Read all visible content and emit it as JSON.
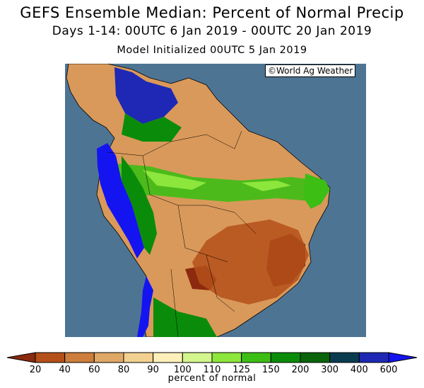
{
  "header": {
    "title": "GEFS Ensemble Median: Percent of Normal Precip",
    "period": "Days 1-14: 00UTC 6 Jan 2019 - 00UTC 20 Jan 2019",
    "init": "Model Initialized 00UTC 5 Jan 2019"
  },
  "map": {
    "credit": "©World Ag Weather",
    "ocean_color": "#4e7494"
  },
  "colorbar": {
    "label": "percent of normal",
    "ticks": [
      "20",
      "40",
      "60",
      "80",
      "90",
      "100",
      "110",
      "125",
      "150",
      "200",
      "300",
      "400",
      "600"
    ],
    "colors": [
      "#8b2a0e",
      "#b4501a",
      "#cd7d3c",
      "#e0a866",
      "#f2d08f",
      "#fcefb9",
      "#d2f58c",
      "#8ce63c",
      "#3cbe14",
      "#0a8c0a",
      "#0a640a",
      "#0a3c50",
      "#1e28b4",
      "#1414f0"
    ]
  }
}
